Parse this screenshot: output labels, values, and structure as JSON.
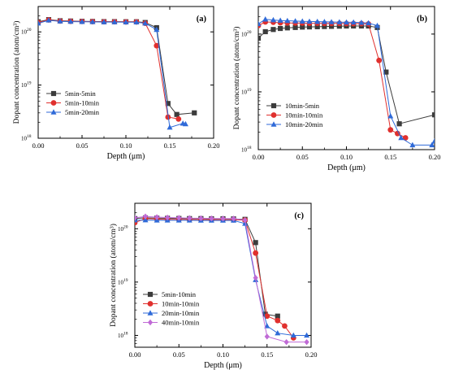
{
  "chart_data": [
    {
      "type": "line",
      "panel_label": "(a)",
      "xlabel": "Depth (μm)",
      "ylabel": "Dopant concentration (atom/cm³)",
      "xlim": [
        0,
        0.2
      ],
      "ylim": [
        1e+18,
        3e+20
      ],
      "yscale": "log",
      "x_ticks": [
        "0.00",
        "0.05",
        "0.10",
        "0.15",
        "0.20"
      ],
      "x_tick_values": [
        0,
        0.05,
        0.1,
        0.15,
        0.2
      ],
      "y_tick_values": [
        1e+18,
        1e+19,
        1e+20
      ],
      "y_tick_bases": [
        "10",
        "10",
        "10"
      ],
      "y_tick_exps": [
        "18",
        "19",
        "20"
      ],
      "legend_position": "lower-left",
      "series": [
        {
          "name": "5min-5min",
          "color": "#3c3c3c",
          "marker": "square",
          "x": [
            0,
            0.012,
            0.025,
            0.037,
            0.05,
            0.062,
            0.075,
            0.087,
            0.1,
            0.112,
            0.122,
            0.135,
            0.148,
            0.158,
            0.178
          ],
          "y": [
            1.55e+20,
            1.7e+20,
            1.62e+20,
            1.6e+20,
            1.58e+20,
            1.57e+20,
            1.56e+20,
            1.56e+20,
            1.55e+20,
            1.55e+20,
            1.5e+20,
            1.2e+20,
            4.5e+18,
            2.8e+18,
            3e+18
          ]
        },
        {
          "name": "5min-10min",
          "color": "#e0302e",
          "marker": "circle",
          "x": [
            0,
            0.012,
            0.025,
            0.037,
            0.05,
            0.062,
            0.075,
            0.087,
            0.1,
            0.112,
            0.122,
            0.135,
            0.148,
            0.16
          ],
          "y": [
            1.5e+20,
            1.68e+20,
            1.6e+20,
            1.58e+20,
            1.57e+20,
            1.56e+20,
            1.55e+20,
            1.55e+20,
            1.54e+20,
            1.54e+20,
            1.45e+20,
            5.5e+19,
            2.5e+18,
            2.3e+18
          ]
        },
        {
          "name": "5min-20min",
          "color": "#2f6ad8",
          "marker": "triangle",
          "x": [
            0,
            0.012,
            0.025,
            0.037,
            0.05,
            0.062,
            0.075,
            0.087,
            0.1,
            0.112,
            0.122,
            0.135,
            0.15,
            0.165,
            0.168
          ],
          "y": [
            1.45e+20,
            1.65e+20,
            1.58e+20,
            1.56e+20,
            1.55e+20,
            1.54e+20,
            1.53e+20,
            1.53e+20,
            1.52e+20,
            1.52e+20,
            1.45e+20,
            1.1e+20,
            1.6e+18,
            1.9e+18,
            1.85e+18
          ]
        }
      ]
    },
    {
      "type": "line",
      "panel_label": "(b)",
      "xlabel": "Depth (μm)",
      "ylabel": "Dopant concentration (atom/cm³)",
      "xlim": [
        0,
        0.2
      ],
      "ylim": [
        1e+18,
        3e+20
      ],
      "yscale": "log",
      "x_ticks": [
        "0.00",
        "0.05",
        "0.10",
        "0.15",
        "0.20"
      ],
      "x_tick_values": [
        0,
        0.05,
        0.1,
        0.15,
        0.2
      ],
      "y_tick_values": [
        1e+18,
        1e+19,
        1e+20
      ],
      "y_tick_bases": [
        "10",
        "10",
        "10"
      ],
      "y_tick_exps": [
        "18",
        "19",
        "20"
      ],
      "legend_position": "lower-left",
      "series": [
        {
          "name": "10min-5min",
          "color": "#3c3c3c",
          "marker": "square",
          "x": [
            0,
            0.008,
            0.017,
            0.025,
            0.033,
            0.042,
            0.05,
            0.058,
            0.067,
            0.075,
            0.083,
            0.092,
            0.1,
            0.108,
            0.117,
            0.125,
            0.135,
            0.145,
            0.16,
            0.2
          ],
          "y": [
            8.5e+19,
            1.1e+20,
            1.2e+20,
            1.25e+20,
            1.28e+20,
            1.3e+20,
            1.32e+20,
            1.33e+20,
            1.34e+20,
            1.35e+20,
            1.36e+20,
            1.37e+20,
            1.38e+20,
            1.38e+20,
            1.38e+20,
            1.38e+20,
            1.3e+20,
            2.2e+19,
            2.8e+18,
            4e+18
          ]
        },
        {
          "name": "10min-10min",
          "color": "#e0302e",
          "marker": "circle",
          "x": [
            0,
            0.008,
            0.017,
            0.025,
            0.033,
            0.042,
            0.05,
            0.058,
            0.067,
            0.075,
            0.083,
            0.092,
            0.1,
            0.108,
            0.117,
            0.125,
            0.137,
            0.15,
            0.158,
            0.167
          ],
          "y": [
            1.4e+20,
            1.62e+20,
            1.6e+20,
            1.57e+20,
            1.56e+20,
            1.55e+20,
            1.55e+20,
            1.54e+20,
            1.54e+20,
            1.53e+20,
            1.53e+20,
            1.53e+20,
            1.52e+20,
            1.52e+20,
            1.52e+20,
            1.5e+20,
            3.5e+19,
            2.2e+18,
            1.9e+18,
            1.6e+18
          ]
        },
        {
          "name": "10min-20min",
          "color": "#2f6ad8",
          "marker": "triangle",
          "x": [
            0,
            0.008,
            0.017,
            0.025,
            0.033,
            0.042,
            0.05,
            0.058,
            0.067,
            0.075,
            0.083,
            0.092,
            0.1,
            0.108,
            0.117,
            0.125,
            0.135,
            0.15,
            0.162,
            0.175,
            0.197,
            0.2
          ],
          "y": [
            1.5e+20,
            1.8e+20,
            1.75e+20,
            1.72e+20,
            1.7e+20,
            1.68e+20,
            1.66e+20,
            1.65e+20,
            1.64e+20,
            1.63e+20,
            1.62e+20,
            1.61e+20,
            1.6e+20,
            1.6e+20,
            1.58e+20,
            1.55e+20,
            1.4e+20,
            3.8e+18,
            1.6e+18,
            1.2e+18,
            1.2e+18,
            1.4e+18
          ]
        }
      ]
    },
    {
      "type": "line",
      "panel_label": "(c)",
      "xlabel": "Depth (μm)",
      "ylabel": "Dopant concentration (atom/cm³)",
      "xlim": [
        0,
        0.2
      ],
      "ylim": [
        6e+17,
        3e+20
      ],
      "yscale": "log",
      "x_ticks": [
        "0.00",
        "0.05",
        "0.10",
        "0.15",
        "0.20"
      ],
      "x_tick_values": [
        0,
        0.05,
        0.1,
        0.15,
        0.2
      ],
      "y_tick_values": [
        1e+18,
        1e+19,
        1e+20
      ],
      "y_tick_bases": [
        "10",
        "10",
        "10"
      ],
      "y_tick_exps": [
        "18",
        "19",
        "20"
      ],
      "legend_position": "lower-left",
      "series": [
        {
          "name": "5min-10min",
          "color": "#3c3c3c",
          "marker": "square",
          "x": [
            0,
            0.012,
            0.025,
            0.037,
            0.05,
            0.062,
            0.075,
            0.087,
            0.1,
            0.112,
            0.125,
            0.137,
            0.148,
            0.162
          ],
          "y": [
            1.55e+20,
            1.6e+20,
            1.58e+20,
            1.57e+20,
            1.56e+20,
            1.55e+20,
            1.55e+20,
            1.54e+20,
            1.54e+20,
            1.53e+20,
            1.5e+20,
            5.5e+19,
            2.5e+18,
            2.3e+18
          ]
        },
        {
          "name": "10min-10min",
          "color": "#e0302e",
          "marker": "circle",
          "x": [
            0,
            0.012,
            0.025,
            0.037,
            0.05,
            0.062,
            0.075,
            0.087,
            0.1,
            0.112,
            0.125,
            0.137,
            0.15,
            0.162,
            0.17,
            0.18
          ],
          "y": [
            1.3e+20,
            1.55e+20,
            1.52e+20,
            1.5e+20,
            1.5e+20,
            1.49e+20,
            1.49e+20,
            1.48e+20,
            1.48e+20,
            1.47e+20,
            1.45e+20,
            3.5e+19,
            2.3e+18,
            1.9e+18,
            1.5e+18,
            9e+17
          ]
        },
        {
          "name": "20min-10min",
          "color": "#2f6ad8",
          "marker": "triangle",
          "x": [
            0,
            0.012,
            0.025,
            0.037,
            0.05,
            0.062,
            0.075,
            0.087,
            0.1,
            0.112,
            0.125,
            0.137,
            0.15,
            0.162,
            0.18,
            0.195
          ],
          "y": [
            1.45e+20,
            1.45e+20,
            1.44e+20,
            1.44e+20,
            1.44e+20,
            1.44e+20,
            1.43e+20,
            1.43e+20,
            1.43e+20,
            1.43e+20,
            1.25e+20,
            1.1e+19,
            1.5e+18,
            1.1e+18,
            1e+18,
            1e+18
          ]
        },
        {
          "name": "40min-10min",
          "color": "#c06ad6",
          "marker": "diamond",
          "x": [
            0,
            0.012,
            0.025,
            0.037,
            0.05,
            0.062,
            0.075,
            0.087,
            0.1,
            0.112,
            0.125,
            0.137,
            0.15,
            0.172,
            0.195
          ],
          "y": [
            1.6e+20,
            1.7e+20,
            1.65e+20,
            1.62e+20,
            1.6e+20,
            1.58e+20,
            1.57e+20,
            1.56e+20,
            1.55e+20,
            1.55e+20,
            1.45e+20,
            1.2e+19,
            9.5e+17,
            7.5e+17,
            7.5e+17
          ]
        }
      ]
    }
  ]
}
